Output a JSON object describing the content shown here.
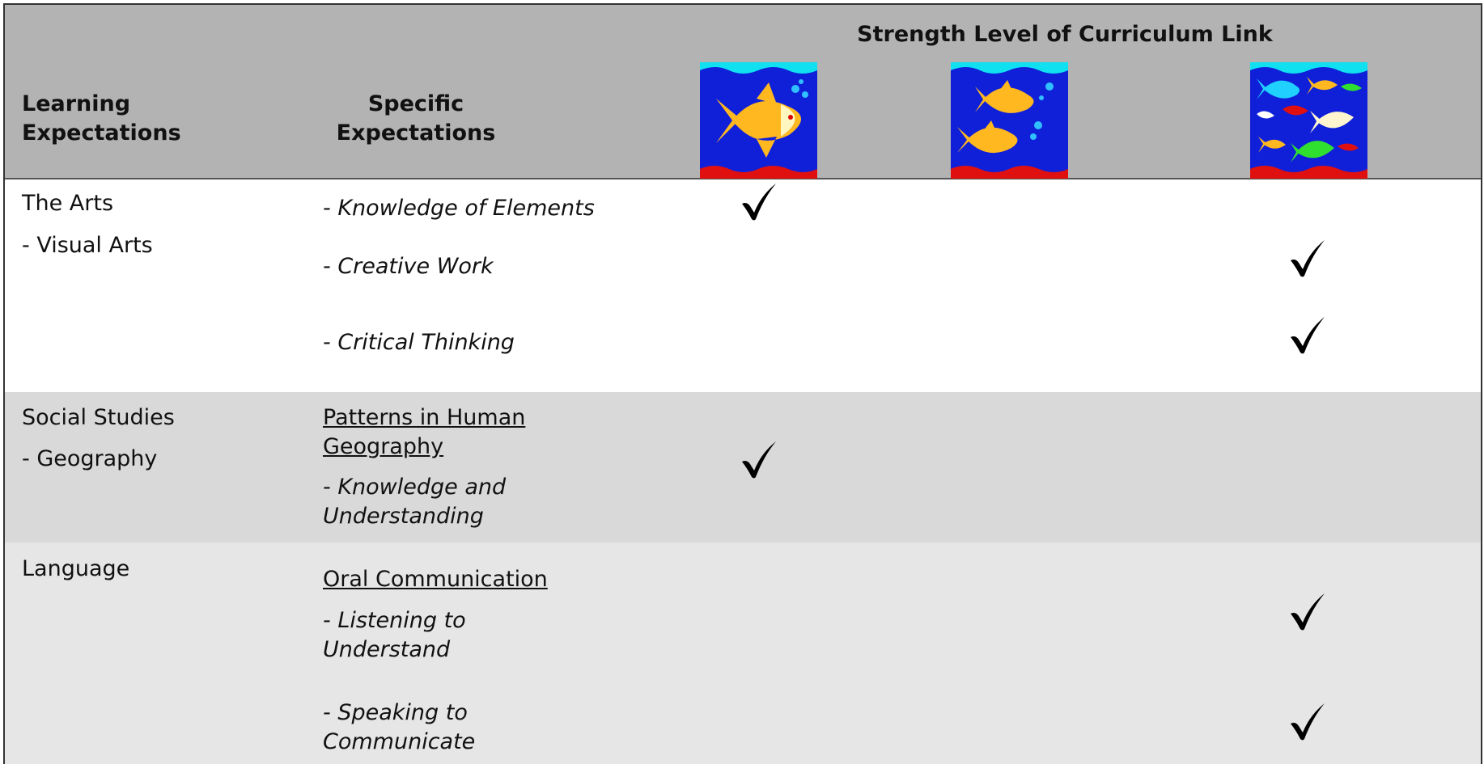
{
  "header": {
    "title": "Strength Level of Curriculum Link",
    "columns": [
      "Learning Expectations",
      "Specific Expectations"
    ]
  },
  "sections": [
    {
      "subject": [
        "The Arts",
        "- Visual Arts"
      ],
      "items": [
        {
          "text": "- Knowledge of Elements",
          "checks": [
            true,
            false,
            false
          ]
        },
        {
          "text": "- Creative Work",
          "checks": [
            false,
            false,
            true
          ]
        },
        {
          "text": "- Critical Thinking",
          "checks": [
            false,
            false,
            true
          ]
        }
      ]
    },
    {
      "subject": [
        "Social Studies",
        "- Geography"
      ],
      "strand": "Patterns in Human Geography",
      "items": [
        {
          "text": "- Knowledge and Understanding",
          "checks": [
            true,
            false,
            false
          ]
        }
      ]
    },
    {
      "subject": [
        "Language"
      ],
      "strand": "Oral Communication",
      "items": [
        {
          "text": "- Listening to Understand",
          "checks": [
            false,
            false,
            true
          ]
        },
        {
          "text": "- Speaking to Communicate",
          "checks": [
            false,
            false,
            true
          ]
        }
      ]
    }
  ]
}
